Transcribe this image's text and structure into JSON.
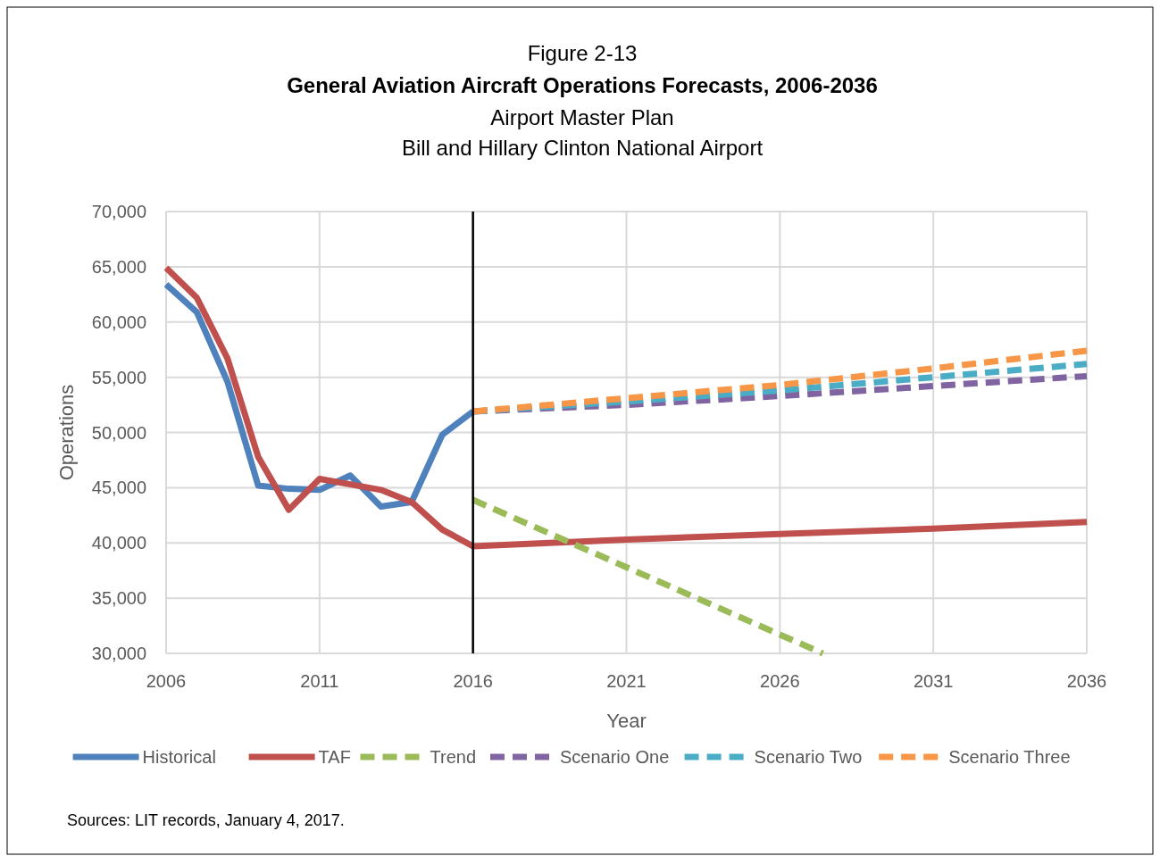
{
  "chart_data": {
    "type": "line",
    "title": "Figure 2-13\nGeneral Aviation Aircraft Operations Forecasts, 2006-2036",
    "subtitle": "Airport Master Plan\nBill and Hillary Clinton National Airport",
    "xlabel": "Year",
    "ylabel": "Operations",
    "xlim": [
      2006,
      2036
    ],
    "xticks": [
      2006,
      2011,
      2016,
      2021,
      2026,
      2031,
      2036
    ],
    "ylim": [
      30000,
      70000
    ],
    "yticks": [
      {
        "value": 30000,
        "label": "30,000"
      },
      {
        "value": 35000,
        "label": "35,000"
      },
      {
        "value": 40000,
        "label": "40,000"
      },
      {
        "value": 45000,
        "label": "45,000"
      },
      {
        "value": 50000,
        "label": "50,000"
      },
      {
        "value": 55000,
        "label": "55,000"
      },
      {
        "value": 60000,
        "label": "60,000"
      },
      {
        "value": 65000,
        "label": "65,000"
      },
      {
        "value": 70000,
        "label": "70,000"
      }
    ],
    "grid": true,
    "legend": "bottom",
    "marker": "none",
    "series": [
      {
        "name": "Historical",
        "color": "#4f81bd",
        "line_style": "solid",
        "x": [
          2006,
          2007,
          2008,
          2009,
          2010,
          2011,
          2012,
          2013,
          2014,
          2015,
          2016
        ],
        "values": [
          63400,
          60900,
          54600,
          45200,
          44900,
          44800,
          46100,
          43300,
          43700,
          49800,
          51900
        ]
      },
      {
        "name": "TAF",
        "color": "#c0504d",
        "line_style": "solid",
        "x": [
          2006,
          2007,
          2008,
          2009,
          2010,
          2011,
          2012,
          2013,
          2014,
          2015,
          2016,
          2021,
          2026,
          2031,
          2036
        ],
        "values": [
          64900,
          62200,
          56700,
          47800,
          43000,
          45800,
          45300,
          44800,
          43700,
          41200,
          39700,
          40300,
          40800,
          41300,
          41900
        ]
      },
      {
        "name": "Trend",
        "color": "#9bbb59",
        "line_style": "dashed",
        "x": [
          2016,
          2021,
          2026,
          2027.4
        ],
        "values": [
          43900,
          37800,
          31700,
          30000
        ]
      },
      {
        "name": "Scenario One",
        "color": "#8064a2",
        "line_style": "dashed",
        "x": [
          2016,
          2021,
          2026,
          2031,
          2036
        ],
        "values": [
          51900,
          52500,
          53300,
          54200,
          55100
        ]
      },
      {
        "name": "Scenario Two",
        "color": "#4bacc6",
        "line_style": "dashed",
        "x": [
          2016,
          2021,
          2026,
          2031,
          2036
        ],
        "values": [
          51900,
          52800,
          53800,
          55000,
          56200
        ]
      },
      {
        "name": "Scenario Three",
        "color": "#f79646",
        "line_style": "dashed",
        "x": [
          2016,
          2021,
          2026,
          2031,
          2036
        ],
        "values": [
          51900,
          53100,
          54300,
          55800,
          57400
        ]
      }
    ],
    "ref_lines": [
      {
        "axis": "x",
        "value": 2016,
        "color": "#000000"
      }
    ],
    "annotations": [
      "Sources:  LIT records, January 4, 2017."
    ]
  }
}
